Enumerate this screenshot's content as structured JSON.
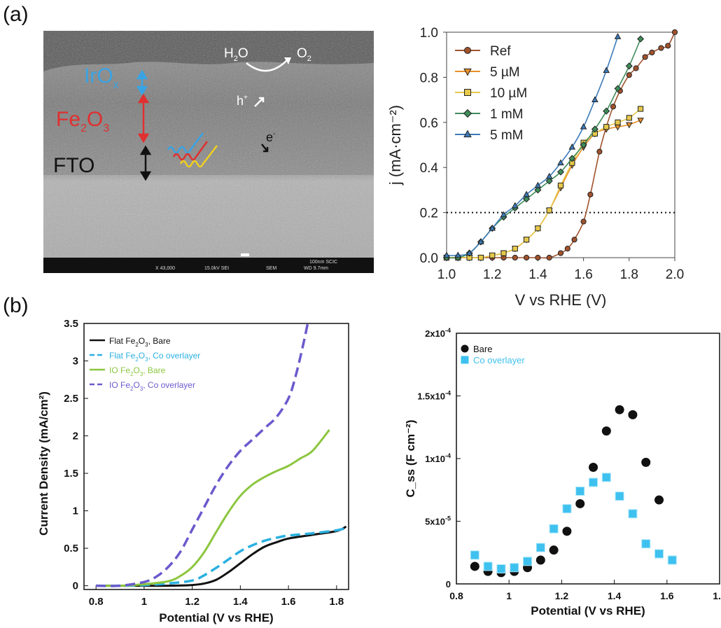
{
  "panel_labels": {
    "a": "(a)",
    "b": "(b)"
  },
  "sem_image": {
    "labels": {
      "top_layer": "IrO",
      "top_layer_sub": "x",
      "middle_layer": "Fe",
      "middle_sub1": "2",
      "middle_mid": "O",
      "middle_sub2": "3",
      "bottom_layer": "FTO",
      "water": "H",
      "water_sub": "2",
      "water_end": "O",
      "oxygen": "O",
      "oxygen_sub": "2",
      "hole": "h",
      "hole_sup": "+",
      "electron": "e",
      "electron_sup": "-"
    },
    "footer": {
      "scale": "100nm SCIC",
      "mag": "X 43,000",
      "kv": "15.0kV SEI",
      "mode": "SEM",
      "wd": "WD 9.7mm"
    },
    "colors": {
      "top_layer": "#3aa3e3",
      "middle_layer": "#e03030",
      "bottom_layer": "#111111",
      "yellow_wave": "#f0d020"
    }
  },
  "chart_data": [
    {
      "id": "a-right",
      "type": "line",
      "xlabel": "V vs RHE (V)",
      "ylabel": "j (mA·cm⁻²)",
      "xlim": [
        1.0,
        2.0
      ],
      "ylim": [
        0.0,
        1.0
      ],
      "xticks": [
        "1.0",
        "1.2",
        "1.4",
        "1.6",
        "1.8",
        "2.0"
      ],
      "yticks": [
        "0.0",
        "0.2",
        "0.4",
        "0.6",
        "0.8",
        "1.0"
      ],
      "reference_line": {
        "y": 0.2,
        "style": "dotted"
      },
      "legend_position": "top-left",
      "series": [
        {
          "name": "Ref",
          "marker": "circle",
          "color": "#a0522d",
          "x": [
            1.0,
            1.05,
            1.1,
            1.15,
            1.2,
            1.25,
            1.3,
            1.35,
            1.4,
            1.45,
            1.5,
            1.53,
            1.56,
            1.6,
            1.63,
            1.67,
            1.7,
            1.73,
            1.76,
            1.8,
            1.83,
            1.87,
            1.9,
            1.94,
            1.97,
            2.0
          ],
          "y": [
            0.0,
            0.0,
            0.0,
            0.0,
            0.0,
            0.0,
            0.0,
            0.0,
            0.0,
            0.0,
            0.02,
            0.04,
            0.08,
            0.16,
            0.28,
            0.47,
            0.58,
            0.67,
            0.74,
            0.81,
            0.84,
            0.89,
            0.91,
            0.93,
            0.94,
            1.0
          ]
        },
        {
          "name": "5 µM",
          "marker": "triangle-down",
          "color": "#e8902a",
          "x": [
            1.0,
            1.05,
            1.1,
            1.15,
            1.2,
            1.25,
            1.3,
            1.35,
            1.4,
            1.45,
            1.5,
            1.55,
            1.6,
            1.65,
            1.7,
            1.75,
            1.8,
            1.85
          ],
          "y": [
            0.0,
            0.0,
            0.0,
            0.0,
            0.01,
            0.02,
            0.04,
            0.08,
            0.13,
            0.21,
            0.31,
            0.41,
            0.49,
            0.55,
            0.57,
            0.58,
            0.59,
            0.61
          ]
        },
        {
          "name": "10 µM",
          "marker": "square",
          "color": "#e6c84a",
          "x": [
            1.0,
            1.05,
            1.1,
            1.15,
            1.2,
            1.25,
            1.3,
            1.35,
            1.4,
            1.45,
            1.5,
            1.55,
            1.6,
            1.65,
            1.7,
            1.75,
            1.8,
            1.85
          ],
          "y": [
            0.0,
            0.0,
            0.0,
            0.0,
            0.01,
            0.02,
            0.04,
            0.08,
            0.13,
            0.21,
            0.32,
            0.42,
            0.51,
            0.55,
            0.58,
            0.6,
            0.62,
            0.66
          ]
        },
        {
          "name": "1 mM",
          "marker": "diamond",
          "color": "#3e8c5a",
          "x": [
            1.0,
            1.05,
            1.1,
            1.15,
            1.2,
            1.25,
            1.3,
            1.35,
            1.4,
            1.45,
            1.5,
            1.55,
            1.6,
            1.65,
            1.7,
            1.75,
            1.8,
            1.85
          ],
          "y": [
            0.0,
            0.0,
            0.02,
            0.07,
            0.13,
            0.18,
            0.22,
            0.26,
            0.3,
            0.34,
            0.38,
            0.44,
            0.5,
            0.57,
            0.65,
            0.75,
            0.85,
            0.97
          ]
        },
        {
          "name": "5 mM",
          "marker": "triangle-up",
          "color": "#3c7ab8",
          "x": [
            1.0,
            1.05,
            1.1,
            1.15,
            1.2,
            1.25,
            1.3,
            1.35,
            1.4,
            1.45,
            1.5,
            1.55,
            1.6,
            1.65,
            1.7,
            1.75
          ],
          "y": [
            0.01,
            0.01,
            0.02,
            0.07,
            0.13,
            0.19,
            0.23,
            0.28,
            0.32,
            0.36,
            0.42,
            0.49,
            0.58,
            0.7,
            0.83,
            0.98
          ]
        }
      ]
    },
    {
      "id": "b-left",
      "type": "line",
      "xlabel": "Potential (V vs RHE)",
      "ylabel": "Current Density (mA/cm²)",
      "xlim": [
        0.75,
        1.85
      ],
      "ylim": [
        -0.05,
        3.5
      ],
      "xticks": [
        "0.8",
        "1",
        "1.2",
        "1.4",
        "1.6",
        "1.8"
      ],
      "yticks": [
        "0",
        "0.5",
        "1",
        "1.5",
        "2",
        "2.5",
        "3",
        "3.5"
      ],
      "legend_position": "top-left",
      "series": [
        {
          "name": "Flat Fe2O3, Bare",
          "legend": [
            "Flat Fe",
            "2",
            "O",
            "3",
            ", Bare"
          ],
          "style": "solid",
          "color": "#111111",
          "x": [
            0.8,
            0.9,
            1.0,
            1.1,
            1.2,
            1.25,
            1.3,
            1.35,
            1.4,
            1.45,
            1.5,
            1.55,
            1.6,
            1.7,
            1.8,
            1.84
          ],
          "y": [
            0.0,
            0.0,
            0.0,
            0.0,
            0.01,
            0.03,
            0.08,
            0.18,
            0.3,
            0.42,
            0.52,
            0.58,
            0.63,
            0.68,
            0.73,
            0.79
          ]
        },
        {
          "name": "Flat Fe2O3, Co overlayer",
          "legend": [
            "Flat Fe",
            "2",
            "O",
            "3",
            ", Co overlayer"
          ],
          "style": "dashed",
          "color": "#2ab0e0",
          "x": [
            0.8,
            0.9,
            1.0,
            1.1,
            1.2,
            1.25,
            1.3,
            1.35,
            1.4,
            1.45,
            1.5,
            1.55,
            1.6,
            1.7,
            1.8,
            1.84
          ],
          "y": [
            0.0,
            0.0,
            0.01,
            0.03,
            0.07,
            0.14,
            0.24,
            0.35,
            0.46,
            0.54,
            0.6,
            0.64,
            0.67,
            0.7,
            0.74,
            0.77
          ]
        },
        {
          "name": "IO Fe2O3, Bare",
          "legend": [
            "IO Fe",
            "2",
            "O",
            "3",
            ", Bare"
          ],
          "style": "solid",
          "color": "#8cc63f",
          "x": [
            0.8,
            0.9,
            1.0,
            1.1,
            1.15,
            1.2,
            1.25,
            1.3,
            1.35,
            1.4,
            1.45,
            1.5,
            1.55,
            1.6,
            1.65,
            1.7,
            1.77
          ],
          "y": [
            0.0,
            0.0,
            0.02,
            0.06,
            0.13,
            0.25,
            0.45,
            0.72,
            0.98,
            1.2,
            1.35,
            1.45,
            1.53,
            1.6,
            1.7,
            1.8,
            2.08
          ]
        },
        {
          "name": "IO Fe2O3, Co overlayer",
          "legend": [
            "IO Fe",
            "2",
            "O",
            "3",
            ", Co overlayer"
          ],
          "style": "dashed",
          "color": "#6a5acd",
          "x": [
            0.8,
            0.9,
            1.0,
            1.05,
            1.1,
            1.15,
            1.2,
            1.25,
            1.3,
            1.35,
            1.4,
            1.45,
            1.5,
            1.55,
            1.6,
            1.63,
            1.66,
            1.68
          ],
          "y": [
            0.0,
            0.0,
            0.05,
            0.12,
            0.25,
            0.45,
            0.75,
            1.05,
            1.35,
            1.6,
            1.8,
            1.95,
            2.1,
            2.25,
            2.5,
            2.8,
            3.2,
            3.5
          ]
        }
      ]
    },
    {
      "id": "b-right",
      "type": "scatter",
      "xlabel": "Potential (V vs RHE)",
      "ylabel": "C_ss (F cm⁻²)",
      "xlim": [
        0.8,
        1.8
      ],
      "ylim": [
        0,
        0.0002
      ],
      "xticks": [
        "0.8",
        "1",
        "1.2",
        "1.4",
        "1.6",
        "1.8"
      ],
      "yticks": [
        {
          "v": 0,
          "mant": "0",
          "exp": ""
        },
        {
          "v": 5e-05,
          "mant": "5x10",
          "exp": "-5"
        },
        {
          "v": 0.0001,
          "mant": "1x10",
          "exp": "-4"
        },
        {
          "v": 0.00015,
          "mant": "1.5x10",
          "exp": "-4"
        },
        {
          "v": 0.0002,
          "mant": "2x10",
          "exp": "-4"
        }
      ],
      "legend_position": "top-left",
      "series": [
        {
          "name": "Bare",
          "marker": "circle",
          "color": "#111111",
          "x": [
            0.87,
            0.92,
            0.97,
            1.02,
            1.07,
            1.12,
            1.17,
            1.22,
            1.27,
            1.32,
            1.37,
            1.42,
            1.47,
            1.52,
            1.57
          ],
          "y": [
            1.4e-05,
            1e-05,
            9e-06,
            1e-05,
            1.3e-05,
            1.9e-05,
            2.7e-05,
            4.2e-05,
            6.4e-05,
            9.3e-05,
            0.000122,
            0.000139,
            0.000135,
            9.7e-05,
            6.7e-05
          ]
        },
        {
          "name": "Co overlayer",
          "marker": "square",
          "color": "#3ec1ef",
          "x": [
            0.87,
            0.92,
            0.97,
            1.02,
            1.07,
            1.12,
            1.17,
            1.22,
            1.27,
            1.32,
            1.37,
            1.42,
            1.47,
            1.52,
            1.57,
            1.62
          ],
          "y": [
            2.3e-05,
            1.4e-05,
            1.2e-05,
            1.3e-05,
            1.8e-05,
            2.9e-05,
            4.4e-05,
            6e-05,
            7.4e-05,
            8.1e-05,
            8.5e-05,
            7e-05,
            5.6e-05,
            3.2e-05,
            2.4e-05,
            1.9e-05
          ]
        }
      ]
    }
  ]
}
